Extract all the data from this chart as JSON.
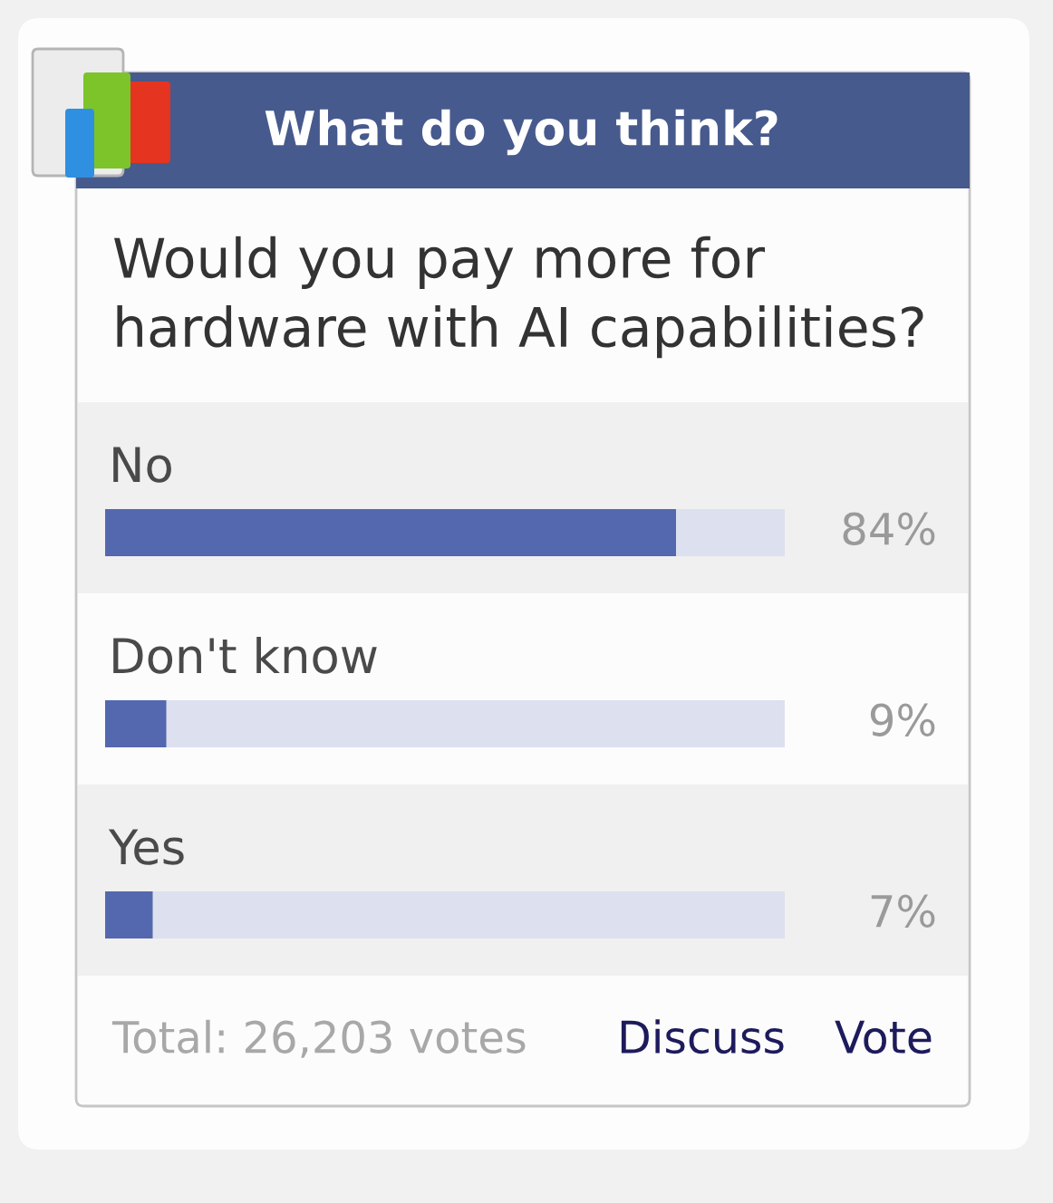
{
  "chart_data": {
    "type": "bar",
    "orientation": "horizontal",
    "title": "What do you think?",
    "subtitle": "Would you pay more for hardware with AI capabilities?",
    "categories": [
      "No",
      "Don't know",
      "Yes"
    ],
    "values": [
      84,
      9,
      7
    ],
    "value_labels": [
      "84%",
      "9%",
      "7%"
    ],
    "color": "#5468b0",
    "xlim": [
      0,
      100
    ],
    "tick_labels": "y",
    "annotations": [
      "Total: 26,203 votes",
      "Discuss",
      "Vote"
    ]
  }
}
